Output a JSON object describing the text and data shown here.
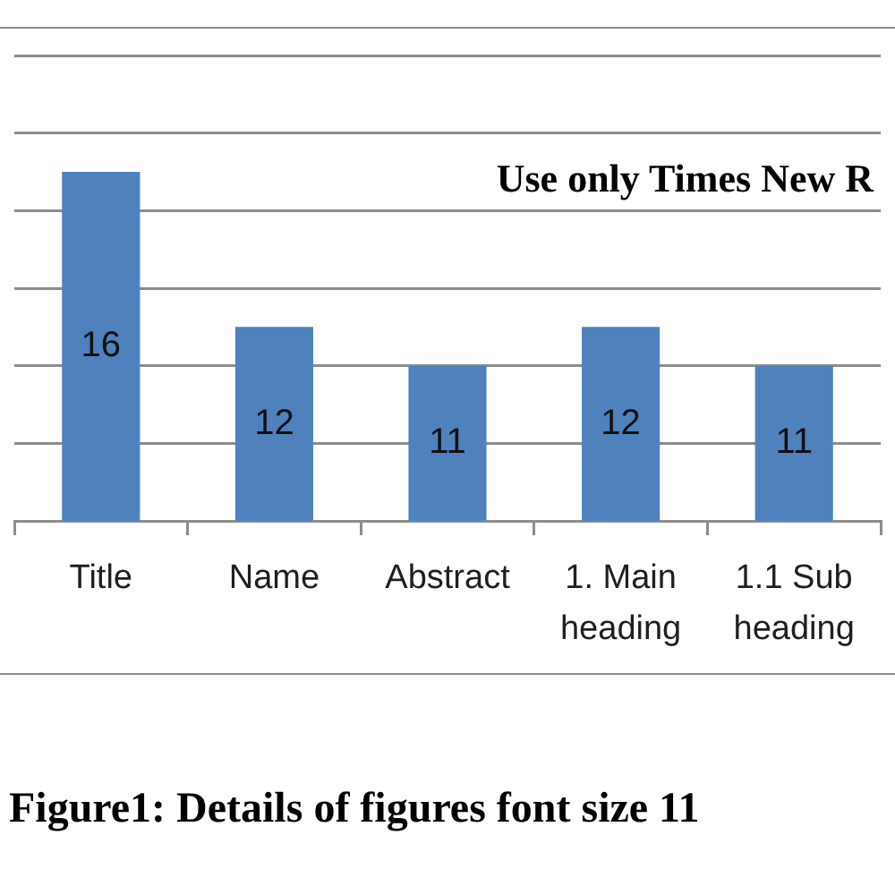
{
  "chart_data": {
    "type": "bar",
    "title": "Figure1: Details of figures font size 11",
    "annotations": [
      "Use only Times New R"
    ],
    "categories": [
      "Title",
      "Name",
      "Abstract",
      "1. Main heading",
      "1.1 Sub heading"
    ],
    "values": [
      16,
      12,
      11,
      12,
      11
    ],
    "color": "#4f81bd",
    "ylim": [
      7,
      19
    ],
    "yticks": [
      {
        "value": 7,
        "label": null
      },
      {
        "value": 9,
        "label": null
      },
      {
        "value": 11,
        "label": null
      },
      {
        "value": 13,
        "label": null
      },
      {
        "value": 15,
        "label": null
      },
      {
        "value": 17,
        "label": null
      },
      {
        "value": 19,
        "label": null
      }
    ],
    "grid": "y",
    "tick_labels": "x",
    "data_labels": true
  }
}
